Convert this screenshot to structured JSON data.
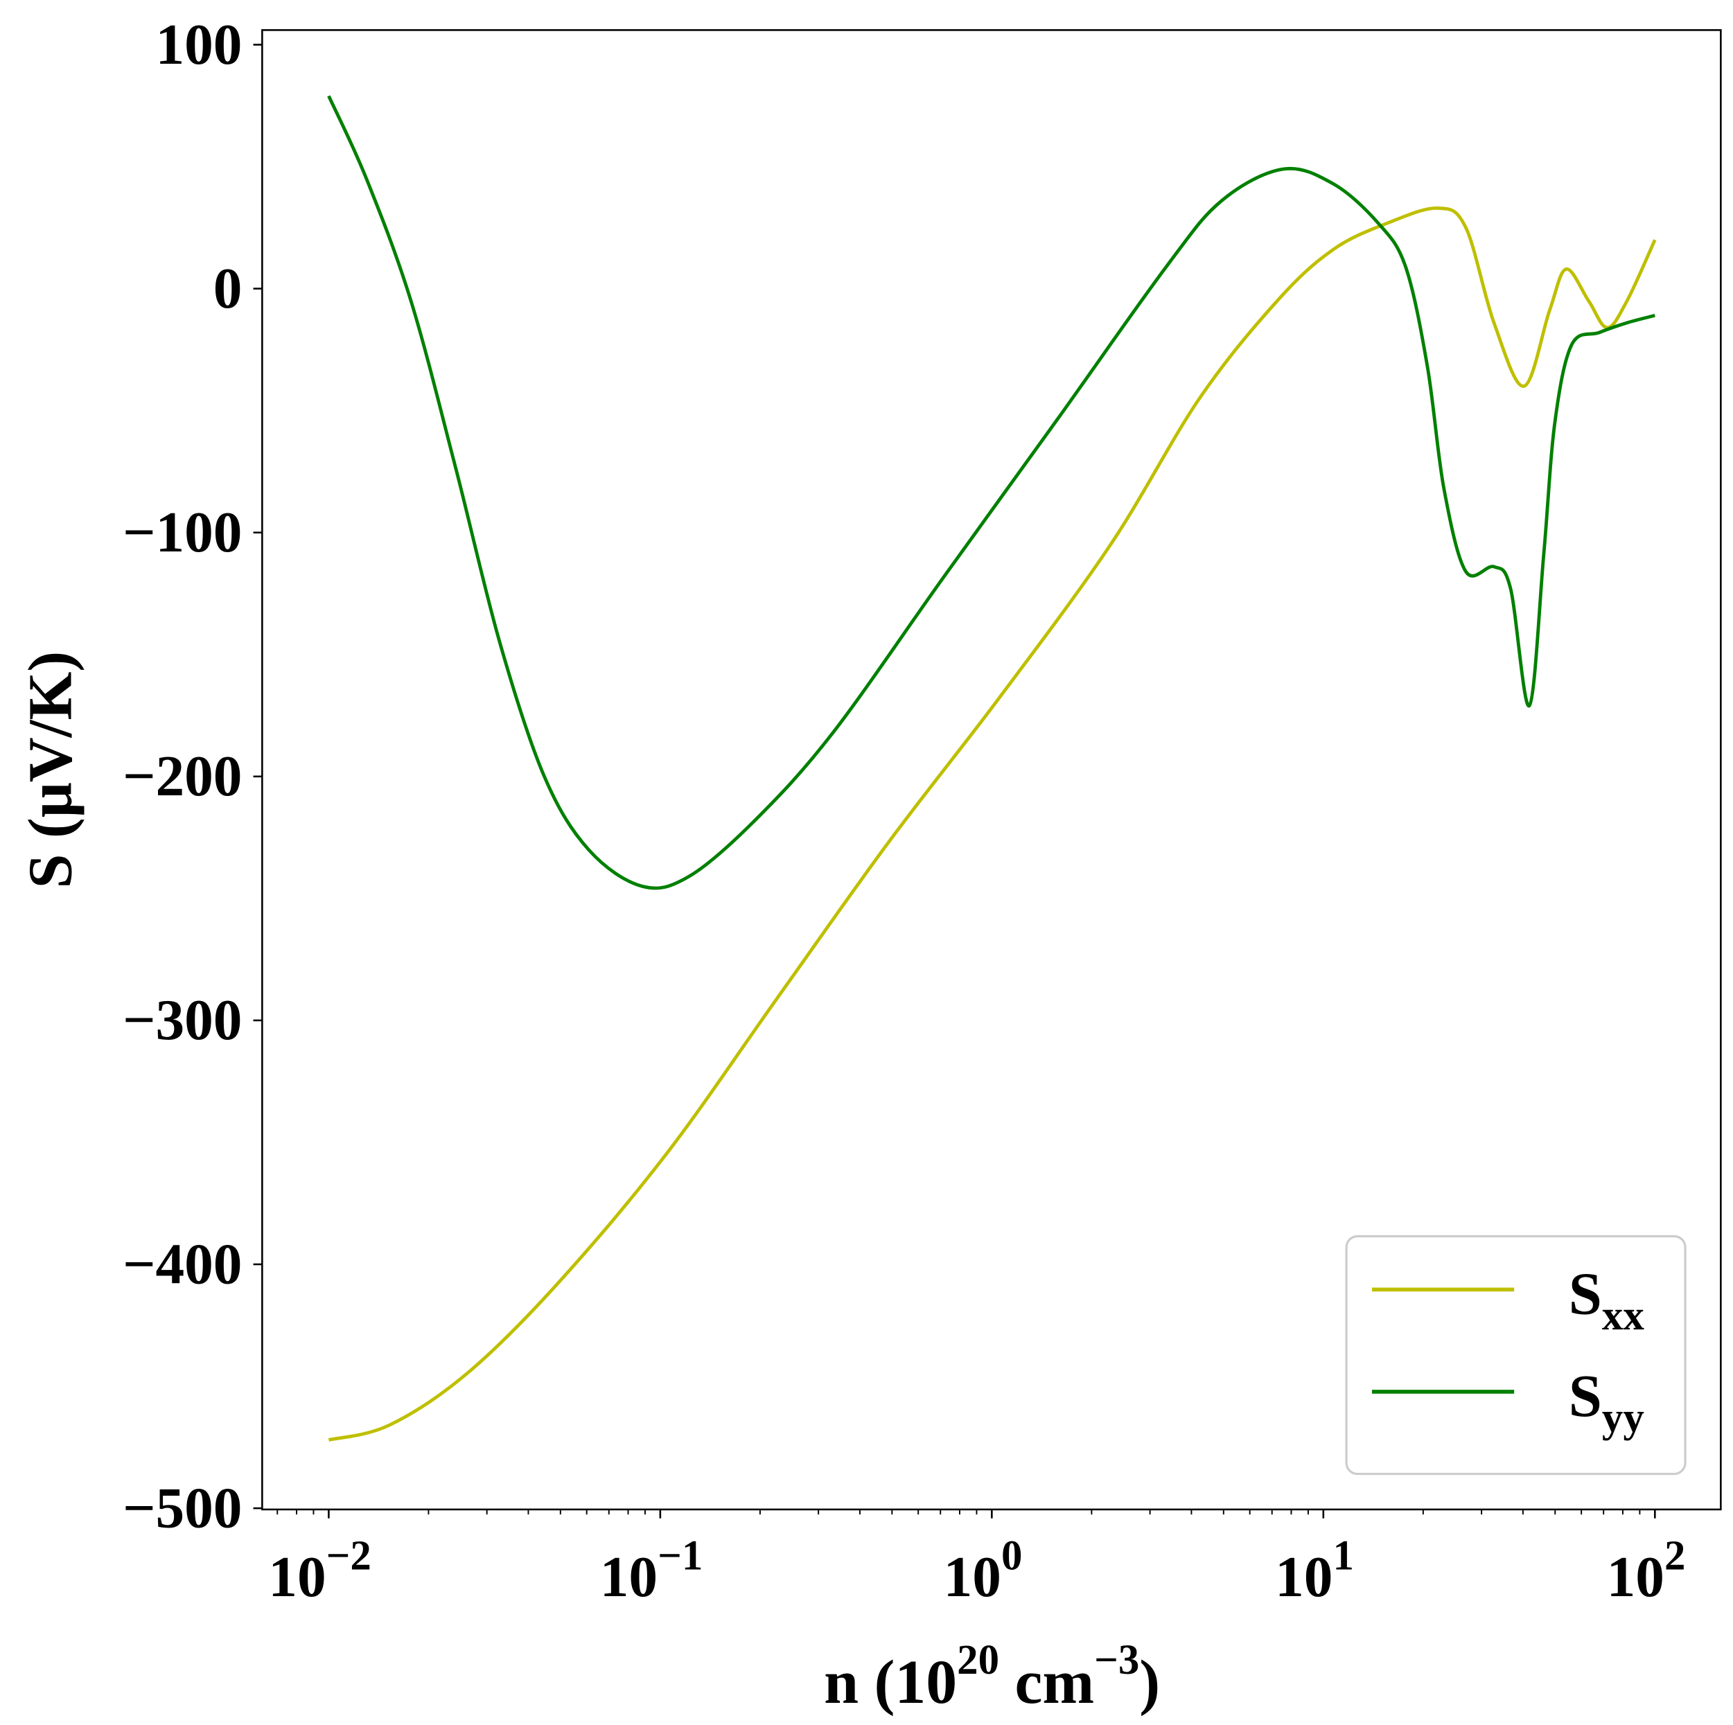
{
  "chart_data": {
    "type": "line",
    "xlabel": "n (10",
    "xlabel_sup": "20",
    "xlabel_unit": " cm",
    "xlabel_unit_sup": "−3",
    "xlabel_close": ")",
    "ylabel": "S (μV/K)",
    "xscale": "log",
    "xlim": [
      0.0063,
      158
    ],
    "ylim": [
      -500.5,
      106
    ],
    "grid": false,
    "legend_placement": "lower right",
    "x_ticks": [
      {
        "value": 0.01,
        "base": "10",
        "exp": "−2"
      },
      {
        "value": 0.1,
        "base": "10",
        "exp": "−1"
      },
      {
        "value": 1,
        "base": "10",
        "exp": "0"
      },
      {
        "value": 10,
        "base": "10",
        "exp": "1"
      },
      {
        "value": 100,
        "base": "10",
        "exp": "2"
      }
    ],
    "y_ticks": [
      {
        "value": 100,
        "label": "100"
      },
      {
        "value": 0,
        "label": "0"
      },
      {
        "value": -100,
        "label": "−100"
      },
      {
        "value": -200,
        "label": "−200"
      },
      {
        "value": -300,
        "label": "−300"
      },
      {
        "value": -400,
        "label": "−400"
      },
      {
        "value": -500,
        "label": "−500"
      }
    ],
    "series": [
      {
        "name": "S",
        "name_sub": "xx",
        "color": "#bfbf00",
        "x": [
          0.01,
          0.0152,
          0.026,
          0.0482,
          0.104,
          0.225,
          0.488,
          1.05,
          2.28,
          4.23,
          7.26,
          10.7,
          15.7,
          22.2,
          26.9,
          32.7,
          40.3,
          48.1,
          54.0,
          63.1,
          71.8,
          82.4,
          100
        ],
        "y": [
          -472,
          -466,
          -445,
          -409,
          -355,
          -291,
          -227,
          -168,
          -105,
          -45,
          -5,
          16,
          27,
          33,
          25,
          -14,
          -40,
          -9,
          8,
          -5,
          -16,
          -5,
          20
        ]
      },
      {
        "name": "S",
        "name_sub": "yy",
        "color": "#008000",
        "x": [
          0.01,
          0.013,
          0.0177,
          0.0241,
          0.0328,
          0.0447,
          0.0608,
          0.0881,
          0.122,
          0.193,
          0.332,
          0.718,
          1.55,
          3.36,
          4.93,
          7.55,
          10.7,
          14.6,
          17.7,
          20.6,
          23.1,
          26.9,
          32.7,
          36.7,
          41.8,
          46.2,
          49.9,
          56.1,
          67.9,
          82.4,
          100
        ],
        "y": [
          79,
          45,
          -5,
          -73,
          -145,
          -200,
          -230,
          -245,
          -241,
          -218,
          -182,
          -118,
          -55,
          9,
          36,
          49,
          43,
          27,
          9,
          -32,
          -82,
          -116,
          -114,
          -123,
          -171,
          -109,
          -55,
          -23,
          -18,
          -14,
          -11
        ]
      }
    ]
  }
}
